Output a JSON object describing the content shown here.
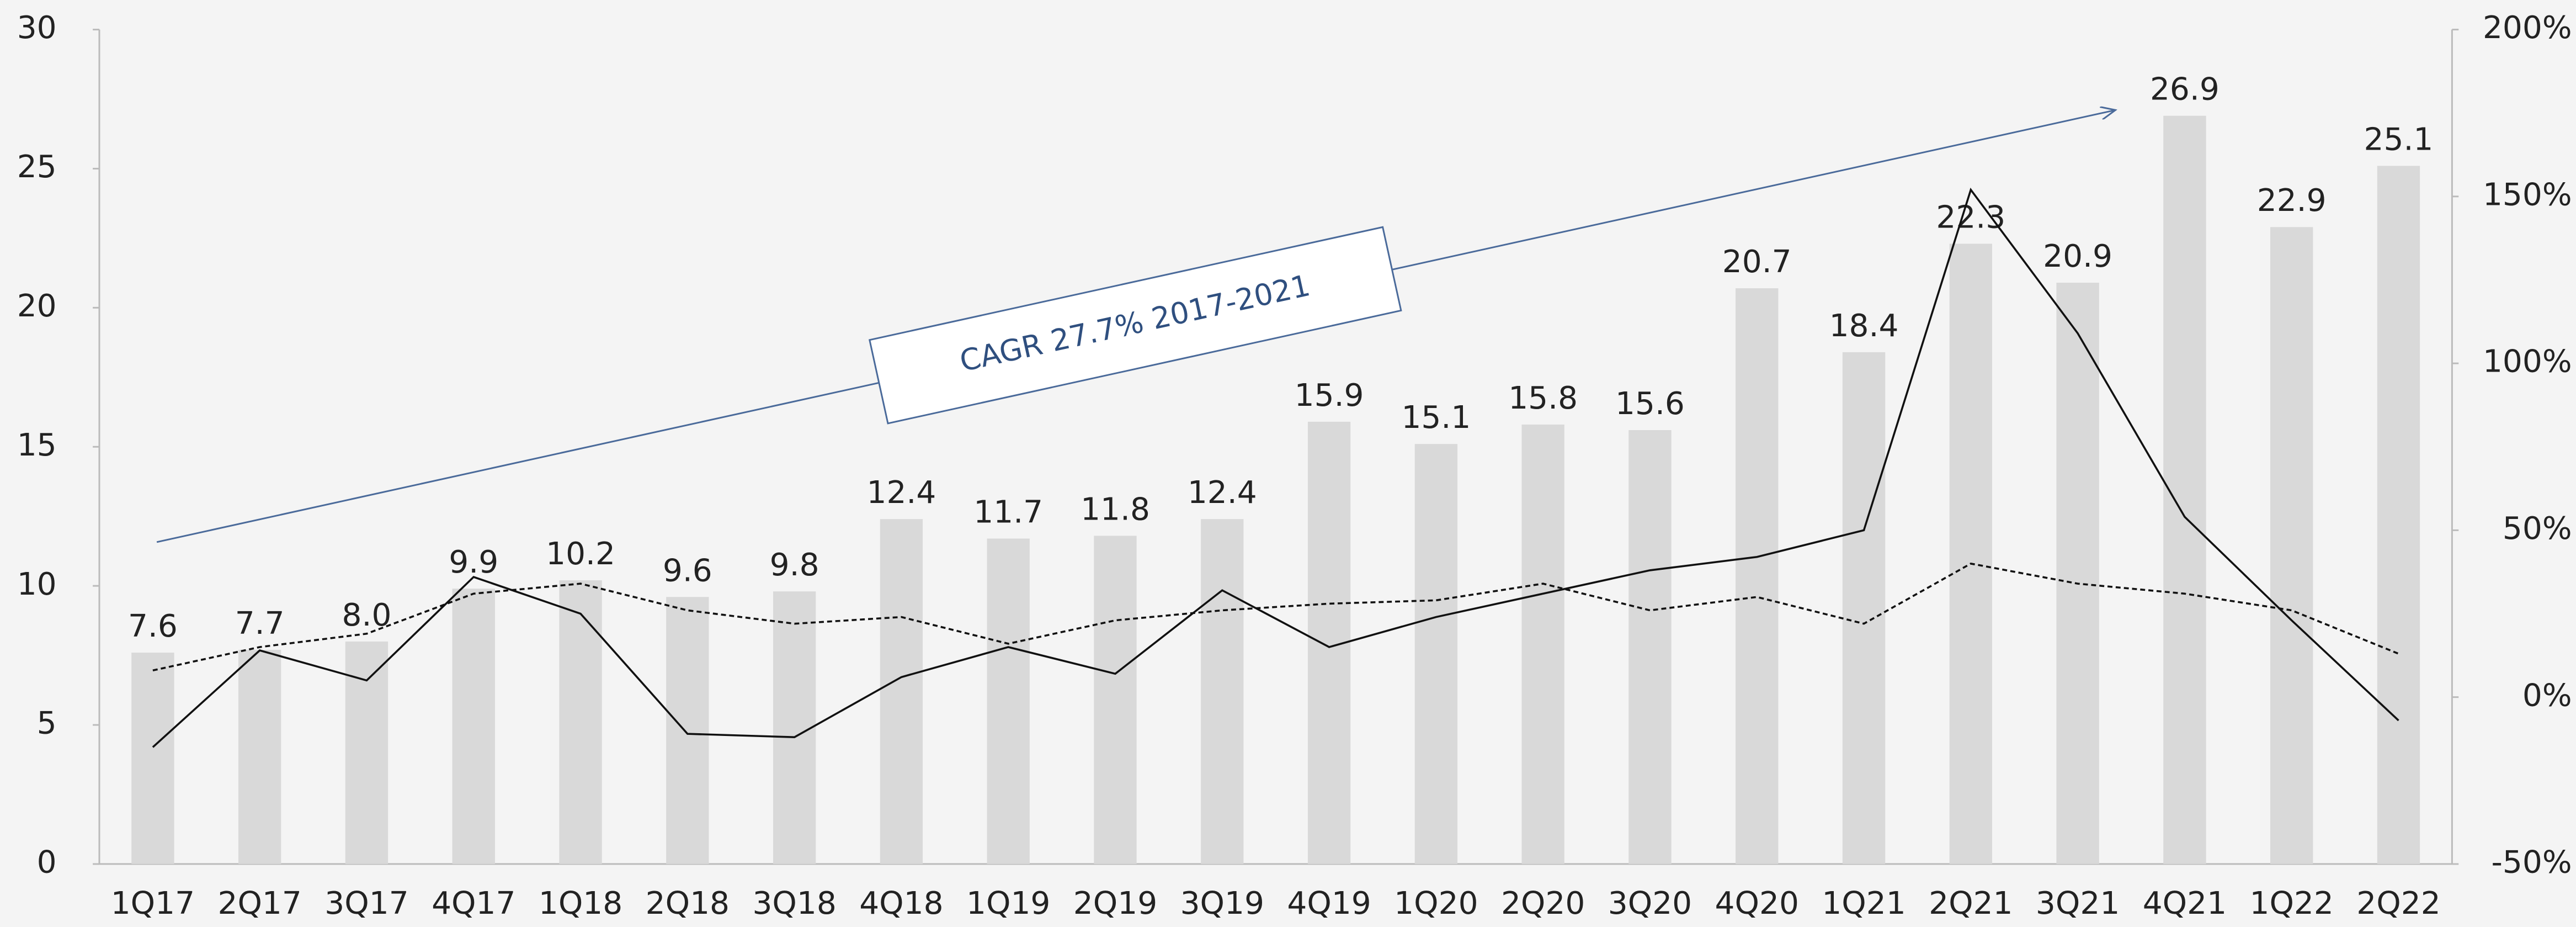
{
  "chart_data": {
    "type": "bar",
    "categories": [
      "1Q17",
      "2Q17",
      "3Q17",
      "4Q17",
      "1Q18",
      "2Q18",
      "3Q18",
      "4Q18",
      "1Q19",
      "2Q19",
      "3Q19",
      "4Q19",
      "1Q20",
      "2Q20",
      "3Q20",
      "4Q20",
      "1Q21",
      "2Q21",
      "3Q21",
      "4Q21",
      "1Q22",
      "2Q22"
    ],
    "series": [
      {
        "type": "bar",
        "color": "#d9d9d9",
        "values": [
          7.6,
          7.7,
          8.0,
          9.9,
          10.2,
          9.6,
          9.8,
          12.4,
          11.7,
          11.8,
          12.4,
          15.9,
          15.1,
          15.8,
          15.6,
          20.7,
          18.4,
          22.3,
          20.9,
          26.9,
          22.9,
          25.1
        ],
        "value_labels": [
          "7.6",
          "7.7",
          "8.0",
          "9.9",
          "10.2",
          "9.6",
          "9.8",
          "12.4",
          "11.7",
          "11.8",
          "12.4",
          "15.9",
          "15.1",
          "15.8",
          "15.6",
          "20.7",
          "18.4",
          "22.3",
          "20.9",
          "26.9",
          "22.9",
          "25.1"
        ]
      },
      {
        "type": "line",
        "axis": "y2",
        "color": "#111111",
        "dashed": false,
        "values": [
          -15,
          14,
          5,
          36,
          25,
          -11,
          -12,
          6,
          15,
          7,
          32,
          15,
          24,
          31,
          38,
          42,
          50,
          152,
          109,
          54,
          23,
          -7
        ]
      },
      {
        "type": "line",
        "axis": "y2",
        "color": "#111111",
        "dashed": true,
        "values": [
          8,
          15,
          19,
          31,
          34,
          26,
          22,
          24,
          16,
          23,
          26,
          28,
          29,
          34,
          26,
          30,
          22,
          40,
          34,
          31,
          26,
          13
        ]
      }
    ],
    "ylim": [
      0,
      30
    ],
    "yticks": [
      0,
      5,
      10,
      15,
      20,
      25,
      30
    ],
    "y2lim": [
      -50,
      200
    ],
    "y2ticks": [
      {
        "value": -50,
        "label": "-50%"
      },
      {
        "value": 0,
        "label": "0%"
      },
      {
        "value": 50,
        "label": "50%"
      },
      {
        "value": 100,
        "label": "100%"
      },
      {
        "value": 150,
        "label": "150%"
      },
      {
        "value": 200,
        "label": "200%"
      }
    ],
    "annotation": "CAGR 27.7% 2017-2021"
  }
}
